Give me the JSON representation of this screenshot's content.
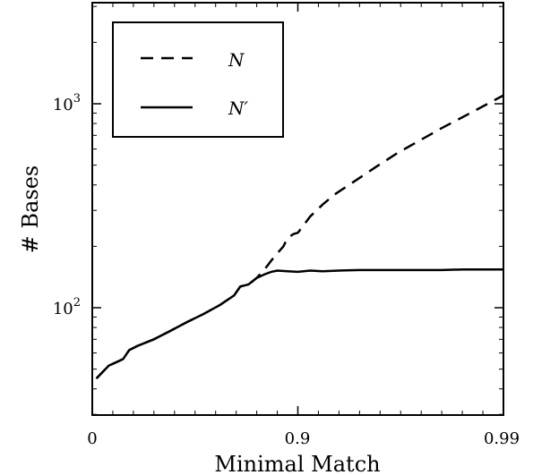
{
  "chart_data": {
    "type": "line",
    "title": "",
    "xlabel": "Minimal Match",
    "ylabel": "# Bases",
    "x_ticks": [
      "0",
      "0.9",
      "0.99"
    ],
    "y_ticks": [
      {
        "base": "10",
        "exp": "2",
        "value": 100
      },
      {
        "base": "10",
        "exp": "3",
        "value": 1000
      }
    ],
    "y_scale": "log",
    "ylim": [
      30,
      3000
    ],
    "xlim": [
      0,
      2
    ],
    "grid": false,
    "legend_position": "top-left",
    "series": [
      {
        "name": "N",
        "style": "dashed",
        "color": "#000000",
        "x": [
          0.02,
          0.08,
          0.15,
          0.18,
          0.22,
          0.3,
          0.38,
          0.46,
          0.54,
          0.62,
          0.69,
          0.72,
          0.76,
          0.8,
          0.84,
          0.87,
          0.9,
          0.93,
          0.95,
          0.98,
          1.0,
          1.06,
          1.12,
          1.18,
          1.28,
          1.38,
          1.48,
          1.58,
          1.7,
          1.82,
          1.94,
          2.0
        ],
        "y": [
          45,
          52,
          56,
          62,
          65,
          70,
          77,
          85,
          93,
          103,
          115,
          127,
          130,
          140,
          155,
          170,
          185,
          200,
          220,
          230,
          233,
          280,
          320,
          360,
          420,
          490,
          570,
          650,
          760,
          880,
          1020,
          1100
        ]
      },
      {
        "name": "N′",
        "style": "solid",
        "color": "#000000",
        "x": [
          0.02,
          0.08,
          0.15,
          0.18,
          0.22,
          0.3,
          0.38,
          0.46,
          0.54,
          0.62,
          0.69,
          0.72,
          0.76,
          0.8,
          0.84,
          0.87,
          0.9,
          0.95,
          1.0,
          1.06,
          1.12,
          1.2,
          1.3,
          1.4,
          1.5,
          1.6,
          1.7,
          1.8,
          1.9,
          2.0
        ],
        "y": [
          45,
          52,
          56,
          62,
          65,
          70,
          77,
          85,
          93,
          103,
          115,
          127,
          130,
          140,
          146,
          150,
          152,
          151,
          150,
          152,
          151,
          152,
          153,
          153,
          153,
          153,
          153,
          154,
          154,
          154
        ]
      }
    ]
  }
}
